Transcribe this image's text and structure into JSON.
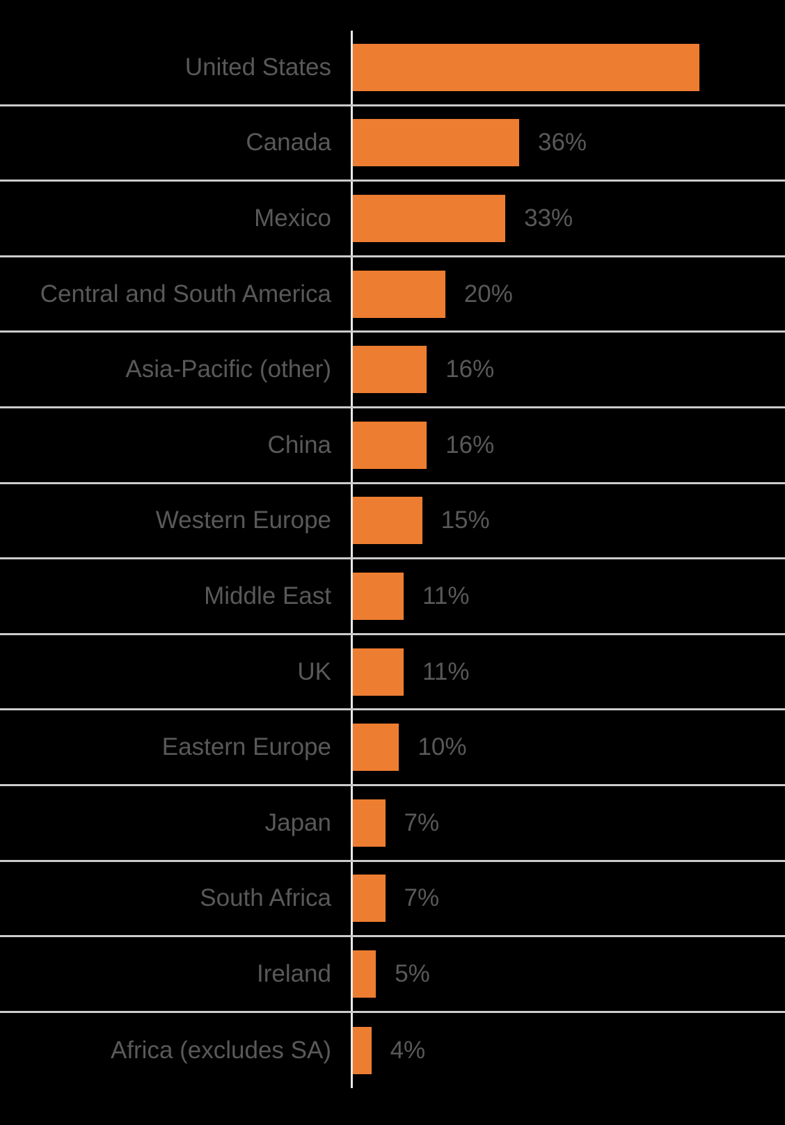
{
  "chart_data": {
    "type": "bar",
    "orientation": "horizontal",
    "title": "",
    "xlabel": "",
    "ylabel": "",
    "legend": "none",
    "grid": "category-separator-lines",
    "categories": [
      "United States",
      "Canada",
      "Mexico",
      "Central and South America",
      "Asia-Pacific (other)",
      "China",
      "Western Europe",
      "Middle East",
      "UK",
      "Eastern Europe",
      "Japan",
      "South Africa",
      "Ireland",
      "Africa (excludes SA)"
    ],
    "values": [
      75,
      36,
      33,
      20,
      16,
      16,
      15,
      11,
      11,
      10,
      7,
      7,
      5,
      4
    ],
    "value_labels": [
      "",
      "36%",
      "33%",
      "20%",
      "16%",
      "16%",
      "15%",
      "11%",
      "11%",
      "10%",
      "7%",
      "7%",
      "5%",
      "4%"
    ],
    "xlim": [
      0,
      93.6
    ],
    "colors": {
      "background": "#000000",
      "bar": "#ED7D31",
      "label_text": "#595959",
      "gridline": "#CCCCCC",
      "axis_line": "#E8E8E8"
    }
  }
}
